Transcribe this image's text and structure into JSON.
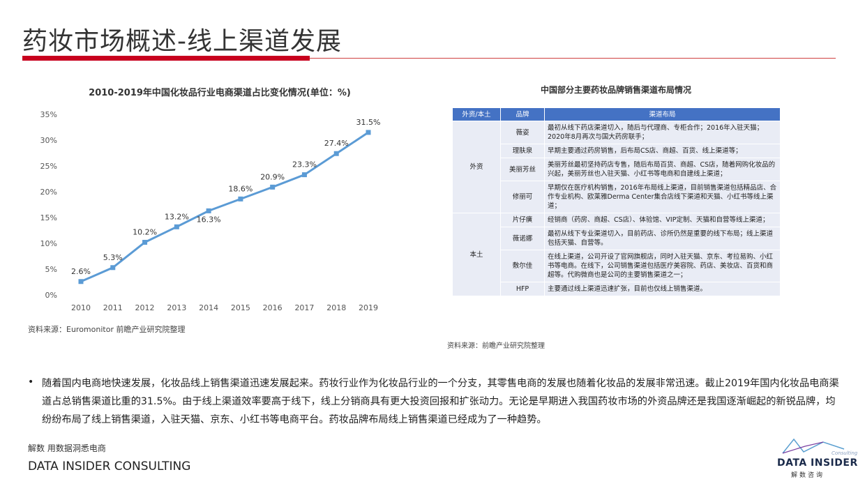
{
  "header": {
    "title": "药妆市场概述-线上渠道发展"
  },
  "chart": {
    "title": "2010-2019年中国化妆品行业电商渠道占比变化情况(单位：%)",
    "source": "资料来源：Euromonitor 前瞻产业研究院整理"
  },
  "chart_data": {
    "type": "line",
    "title": "2010-2019年中国化妆品行业电商渠道占比变化情况(单位：%)",
    "x": [
      "2010",
      "2011",
      "2012",
      "2013",
      "2014",
      "2015",
      "2016",
      "2017",
      "2018",
      "2019"
    ],
    "series": [
      {
        "values": [
          2.6,
          5.3,
          10.2,
          13.2,
          16.3,
          18.6,
          20.9,
          23.3,
          27.4,
          31.5
        ]
      }
    ],
    "data_labels": [
      "2.6%",
      "5.3%",
      "10.2%",
      "13.2%",
      "16.3%",
      "18.6%",
      "20.9%",
      "23.3%",
      "27.4%",
      "31.5%"
    ],
    "y_ticks": [
      "0%",
      "5%",
      "10%",
      "15%",
      "20%",
      "25%",
      "30%",
      "35%"
    ],
    "ylim": [
      0,
      35
    ],
    "grid": false,
    "line_color": "#5b9bd5"
  },
  "table": {
    "title": "中国部分主要药妆品牌销售渠道布局情况",
    "headers": [
      "外资/本土",
      "品牌",
      "渠道布局"
    ],
    "groups": [
      {
        "origin": "外资",
        "rows": [
          {
            "brand": "薇姿",
            "channel": "最初从线下药店渠道切入，随后与代理商、专柜合作；2016年入驻天猫；2020年8月再次与国大药房联手；"
          },
          {
            "brand": "理肤泉",
            "channel": "早期主要通过药房销售，后布局CS店、商超、百货、线上渠道等；"
          },
          {
            "brand": "美丽芳丝",
            "channel": "美丽芳丝最初坚持药店专售，随后布局百货、商超、CS店，随着网购化妆品的兴起，美丽芳丝也入驻天猫、小红书等电商和自建线上渠道；"
          },
          {
            "brand": "修丽可",
            "channel": "早期仅在医疗机构销售，2016年布局线上渠道，目前销售渠道包括精品店、合作专业机构、欧莱雅Derma Center集合店线下渠道和天猫、小红书等线上渠道；"
          }
        ]
      },
      {
        "origin": "本土",
        "rows": [
          {
            "brand": "片仔癀",
            "channel": "经销商（药房、商超、CS店）、体验馆、VIP定制、天猫和自营等线上渠道；"
          },
          {
            "brand": "薇诺娜",
            "channel": "最初从线下专业渠道切入，目前药店、诊所仍然是重要的线下布局；线上渠道包括天猫、自营等。"
          },
          {
            "brand": "敷尔佳",
            "channel": "在线上渠道，公司开设了官网旗舰店，同时入驻天猫、京东、考拉易购、小红书等电商。在线下，公司销售渠道包括医疗美容院、药店、美妆店、百货和商超等。代购微商也是公司的主要销售渠道之一；"
          },
          {
            "brand": "HFP",
            "channel": "主要通过线上渠道迅速扩张，目前也仅线上销售渠道。"
          }
        ]
      }
    ],
    "source": "资料来源：前瞻产业研究院整理"
  },
  "bullet": {
    "marker": "•",
    "text": "随着国内电商地快速发展，化妆品线上销售渠道迅速发展起来。药妆行业作为化妆品行业的一个分支，其零售电商的发展也随着化妆品的发展非常迅速。截止2019年国内化妆品电商渠道占总销售渠道比重的31.5%。由于线上渠道效率要高于线下，线上分销商具有更大投资回报和扩张动力。无论是早期进入我国药妆市场的外资品牌还是我国逐渐崛起的新锐品牌，均纷纷布局了线上销售渠道，入驻天猫、京东、小红书等电商平台。药妆品牌布局线上销售渠道已经成为了一种趋势。"
  },
  "footer": {
    "slogan_cn": "解数 用数据洞悉电商",
    "company_en": "DATA INSIDER CONSULTING"
  },
  "logo": {
    "sub": "Consulting",
    "name": "DATA INSIDER",
    "cn": "解数咨询"
  },
  "colors": {
    "accent_red": "#c8001e",
    "table_header": "#4472c4",
    "table_cell": "#e9ecf5",
    "line": "#5b9bd5"
  }
}
